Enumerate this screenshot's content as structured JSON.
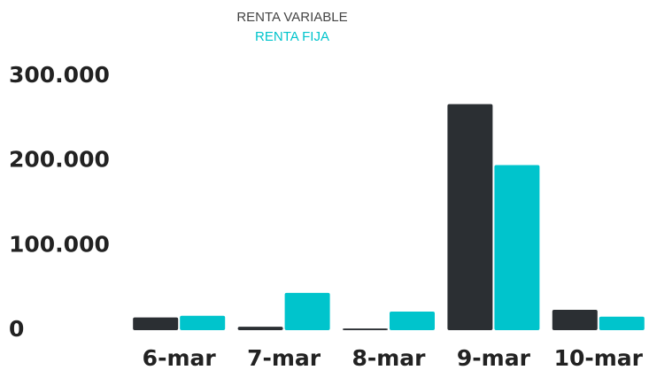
{
  "chart_data": {
    "type": "bar",
    "categories": [
      "6-mar",
      "7-mar",
      "8-mar",
      "9-mar",
      "10-mar"
    ],
    "series": [
      {
        "name": "RENTA VARIABLE",
        "color": "#2b2f33",
        "values": [
          15000,
          4000,
          2000,
          267000,
          24000
        ]
      },
      {
        "name": "RENTA FIJA",
        "color": "#00c4cc",
        "values": [
          17000,
          44000,
          22000,
          195000,
          16000
        ]
      }
    ],
    "ylim": [
      0,
      300000
    ],
    "yticks": [
      0,
      {
        "value": 100000,
        "label": "100.000"
      },
      {
        "value": 200000,
        "label": "200.000"
      },
      {
        "value": 300000,
        "label": "300.000"
      }
    ],
    "grid": false
  }
}
